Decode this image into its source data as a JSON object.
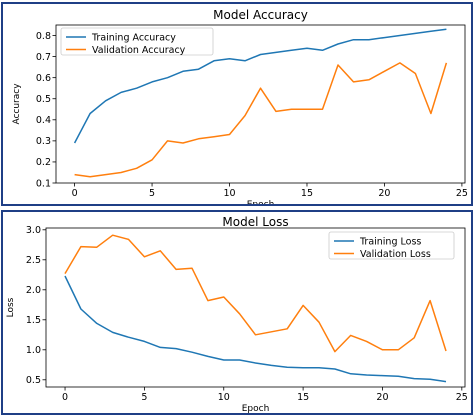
{
  "chart_data": [
    {
      "type": "line",
      "title": "Model Accuracy",
      "xlabel": "Epoch",
      "ylabel": "Accuracy",
      "xlim": [
        -1.2,
        25.2
      ],
      "ylim": [
        0.1,
        0.85
      ],
      "xticks": [
        0,
        5,
        10,
        15,
        20,
        25
      ],
      "yticks": [
        0.1,
        0.2,
        0.3,
        0.4,
        0.5,
        0.6,
        0.7,
        0.8
      ],
      "xtick_labels": [
        "0",
        "5",
        "10",
        "15",
        "20",
        "25"
      ],
      "ytick_labels": [
        "0.1",
        "0.2",
        "0.3",
        "0.4",
        "0.5",
        "0.6",
        "0.7",
        "0.8"
      ],
      "legend_position": "top-left",
      "grid": false,
      "x": [
        0,
        1,
        2,
        3,
        4,
        5,
        6,
        7,
        8,
        9,
        10,
        11,
        12,
        13,
        14,
        15,
        16,
        17,
        18,
        19,
        20,
        21,
        22,
        23,
        24
      ],
      "series": [
        {
          "name": "Training Accuracy",
          "color": "#1f77b4",
          "values": [
            0.29,
            0.43,
            0.49,
            0.53,
            0.55,
            0.58,
            0.6,
            0.63,
            0.64,
            0.68,
            0.69,
            0.68,
            0.71,
            0.72,
            0.73,
            0.74,
            0.73,
            0.76,
            0.78,
            0.78,
            0.79,
            0.8,
            0.81,
            0.82,
            0.83
          ]
        },
        {
          "name": "Validation Accuracy",
          "color": "#ff7f0e",
          "values": [
            0.14,
            0.13,
            0.14,
            0.15,
            0.17,
            0.21,
            0.3,
            0.29,
            0.31,
            0.32,
            0.33,
            0.42,
            0.55,
            0.44,
            0.45,
            0.45,
            0.45,
            0.66,
            0.58,
            0.59,
            0.63,
            0.67,
            0.62,
            0.43,
            0.67
          ]
        }
      ]
    },
    {
      "type": "line",
      "title": "Model Loss",
      "xlabel": "Epoch",
      "ylabel": "Loss",
      "xlim": [
        -1.2,
        25.2
      ],
      "ylim": [
        0.38,
        3.03
      ],
      "xticks": [
        0,
        5,
        10,
        15,
        20,
        25
      ],
      "yticks": [
        0.5,
        1.0,
        1.5,
        2.0,
        2.5,
        3.0
      ],
      "xtick_labels": [
        "0",
        "5",
        "10",
        "15",
        "20",
        "25"
      ],
      "ytick_labels": [
        "0.5",
        "1.0",
        "1.5",
        "2.0",
        "2.5",
        "3.0"
      ],
      "legend_position": "top-right",
      "grid": false,
      "x": [
        0,
        1,
        2,
        3,
        4,
        5,
        6,
        7,
        8,
        9,
        10,
        11,
        12,
        13,
        14,
        15,
        16,
        17,
        18,
        19,
        20,
        21,
        22,
        23,
        24
      ],
      "series": [
        {
          "name": "Training Loss",
          "color": "#1f77b4",
          "values": [
            2.23,
            1.68,
            1.44,
            1.29,
            1.21,
            1.14,
            1.04,
            1.02,
            0.96,
            0.89,
            0.83,
            0.83,
            0.78,
            0.74,
            0.71,
            0.7,
            0.7,
            0.68,
            0.6,
            0.58,
            0.57,
            0.56,
            0.52,
            0.51,
            0.47
          ]
        },
        {
          "name": "Validation Loss",
          "color": "#ff7f0e",
          "values": [
            2.27,
            2.72,
            2.71,
            2.91,
            2.84,
            2.55,
            2.65,
            2.34,
            2.36,
            1.82,
            1.88,
            1.6,
            1.25,
            1.3,
            1.35,
            1.74,
            1.46,
            0.97,
            1.24,
            1.14,
            1.0,
            1.0,
            1.2,
            1.82,
            0.98
          ]
        }
      ]
    }
  ]
}
